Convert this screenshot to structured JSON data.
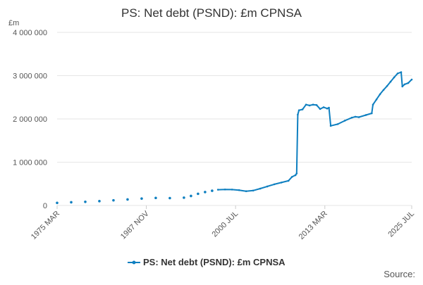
{
  "chart_data": {
    "type": "line",
    "title": "PS: Net debt (PSND): £m CPNSA",
    "unit_label": "£m",
    "ylim": [
      0,
      4000000
    ],
    "y_ticks": [
      0,
      1000000,
      2000000,
      3000000,
      4000000
    ],
    "y_tick_labels": [
      "0",
      "1 000 000",
      "2 000 000",
      "3 000 000",
      "4 000 000"
    ],
    "x_range": [
      1975.17,
      2025.5
    ],
    "x_tick_labels": [
      "1975 MAR",
      "1987 NOV",
      "2000 JUL",
      "2013 MAR",
      "2025 JUL"
    ],
    "x_tick_values": [
      1975.17,
      1987.83,
      2000.5,
      2013.17,
      2025.5
    ],
    "grid": "horizontal",
    "legend_position": "bottom-center",
    "colors": {
      "series": "#0e7fc0",
      "grid": "#e6e6e6",
      "axis_text": "#555555",
      "title": "#333333"
    },
    "series": [
      {
        "name": "PS: Net debt (PSND): £m CPNSA",
        "annual_points": [
          [
            1975.17,
            60000
          ],
          [
            1977.17,
            75000
          ],
          [
            1979.17,
            85000
          ],
          [
            1981.17,
            100000
          ],
          [
            1983.17,
            120000
          ],
          [
            1985.17,
            140000
          ],
          [
            1987.17,
            160000
          ],
          [
            1989.17,
            175000
          ],
          [
            1991.17,
            170000
          ],
          [
            1993.17,
            180000
          ],
          [
            1994.17,
            220000
          ],
          [
            1995.17,
            270000
          ],
          [
            1996.17,
            310000
          ],
          [
            1997.17,
            340000
          ]
        ],
        "monthly_points": [
          [
            1998.0,
            365000
          ],
          [
            1999.0,
            370000
          ],
          [
            2000.0,
            368000
          ],
          [
            2001.0,
            355000
          ],
          [
            2002.0,
            330000
          ],
          [
            2003.0,
            345000
          ],
          [
            2004.0,
            390000
          ],
          [
            2005.0,
            440000
          ],
          [
            2006.0,
            490000
          ],
          [
            2007.0,
            530000
          ],
          [
            2008.0,
            570000
          ],
          [
            2008.5,
            660000
          ],
          [
            2009.0,
            700000
          ],
          [
            2009.17,
            740000
          ],
          [
            2009.33,
            2100000
          ],
          [
            2009.5,
            2200000
          ],
          [
            2010.0,
            2220000
          ],
          [
            2010.5,
            2330000
          ],
          [
            2011.0,
            2310000
          ],
          [
            2011.5,
            2330000
          ],
          [
            2012.0,
            2320000
          ],
          [
            2012.5,
            2230000
          ],
          [
            2013.0,
            2270000
          ],
          [
            2013.5,
            2240000
          ],
          [
            2013.75,
            2260000
          ],
          [
            2014.0,
            1840000
          ],
          [
            2015.0,
            1880000
          ],
          [
            2016.0,
            1960000
          ],
          [
            2017.0,
            2030000
          ],
          [
            2017.5,
            2050000
          ],
          [
            2018.0,
            2040000
          ],
          [
            2019.0,
            2090000
          ],
          [
            2019.83,
            2130000
          ],
          [
            2020.0,
            2330000
          ],
          [
            2020.5,
            2450000
          ],
          [
            2021.0,
            2570000
          ],
          [
            2021.5,
            2670000
          ],
          [
            2022.0,
            2760000
          ],
          [
            2022.5,
            2860000
          ],
          [
            2023.0,
            2960000
          ],
          [
            2023.5,
            3050000
          ],
          [
            2024.0,
            3080000
          ],
          [
            2024.17,
            2750000
          ],
          [
            2024.5,
            2800000
          ],
          [
            2025.0,
            2830000
          ],
          [
            2025.5,
            2910000
          ]
        ]
      }
    ]
  },
  "footer": {
    "source_label": "Source:"
  }
}
